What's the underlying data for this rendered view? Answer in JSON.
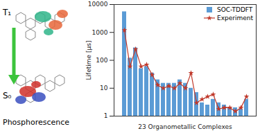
{
  "chart_data": {
    "type": "bar",
    "annotations": [
      "T₁",
      "S₀",
      "Phosphorescence"
    ],
    "x_label": "23 Organometallic Complexes",
    "y_label": "Lifetime [µs]",
    "categories": [
      null,
      null,
      null,
      null,
      null,
      null,
      null,
      null,
      null,
      null,
      null,
      null,
      null,
      null,
      null,
      null,
      null,
      null,
      null,
      null,
      null,
      null,
      null
    ],
    "series": [
      {
        "name": "SOC-TDDFT",
        "type": "bar",
        "color": "#5b9bd5",
        "values": [
          5500,
          120,
          280,
          50,
          60,
          35,
          20,
          15,
          15,
          15,
          20,
          15,
          10,
          7,
          3,
          2.5,
          4,
          3,
          2.5,
          2,
          2,
          1.8,
          4
        ]
      },
      {
        "name": "Experiment",
        "type": "line",
        "color": "#c0392b",
        "marker": "star",
        "values": [
          1200,
          60,
          250,
          60,
          70,
          30,
          13,
          10,
          12,
          10,
          15,
          10,
          35,
          3,
          4,
          5,
          6,
          1.8,
          2,
          2,
          1.5,
          2,
          5
        ]
      }
    ],
    "log": "y",
    "ylim": [
      1,
      10000
    ],
    "yticks": [
      1,
      10,
      100,
      1000,
      10000
    ],
    "grid": false,
    "legend": "top-right",
    "tick_labels": "y"
  }
}
